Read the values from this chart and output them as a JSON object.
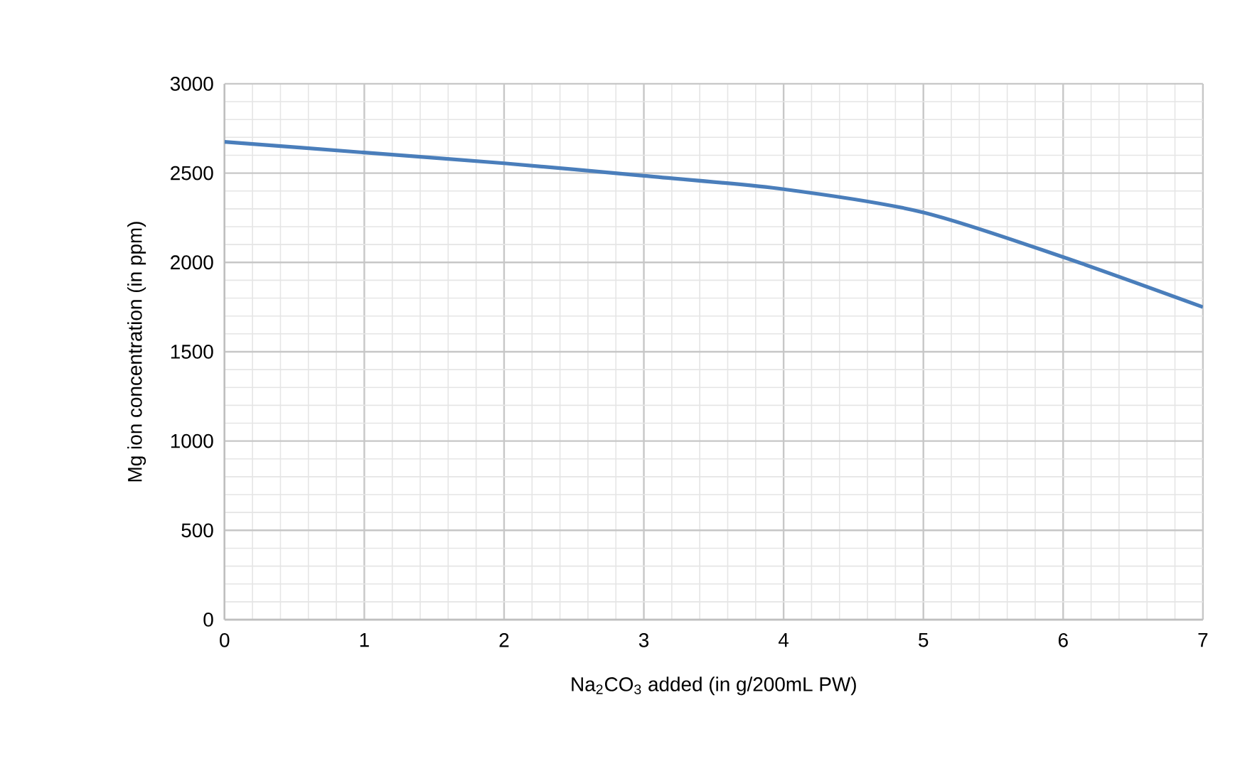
{
  "chart_data": {
    "type": "line",
    "xlabel": "Na$_{2}$CO$_{3}$ added (in g/200mL PW)",
    "ylabel": "Mg ion concentration (in ppm)",
    "x": [
      0,
      1,
      2,
      3,
      4,
      5,
      6,
      7
    ],
    "series": [
      {
        "color": "#4a7ebb",
        "values": [
          2675,
          2615,
          2555,
          2485,
          2410,
          2280,
          2030,
          1750
        ]
      }
    ],
    "xlim": [
      0,
      7
    ],
    "xticks": [
      0,
      1,
      2,
      3,
      4,
      5,
      6,
      7
    ],
    "ylim": [
      0,
      3000
    ],
    "yticks": [
      0,
      500,
      1000,
      1500,
      2000,
      2500,
      3000
    ],
    "grid": true,
    "marker": "none",
    "line_style": "solid"
  }
}
